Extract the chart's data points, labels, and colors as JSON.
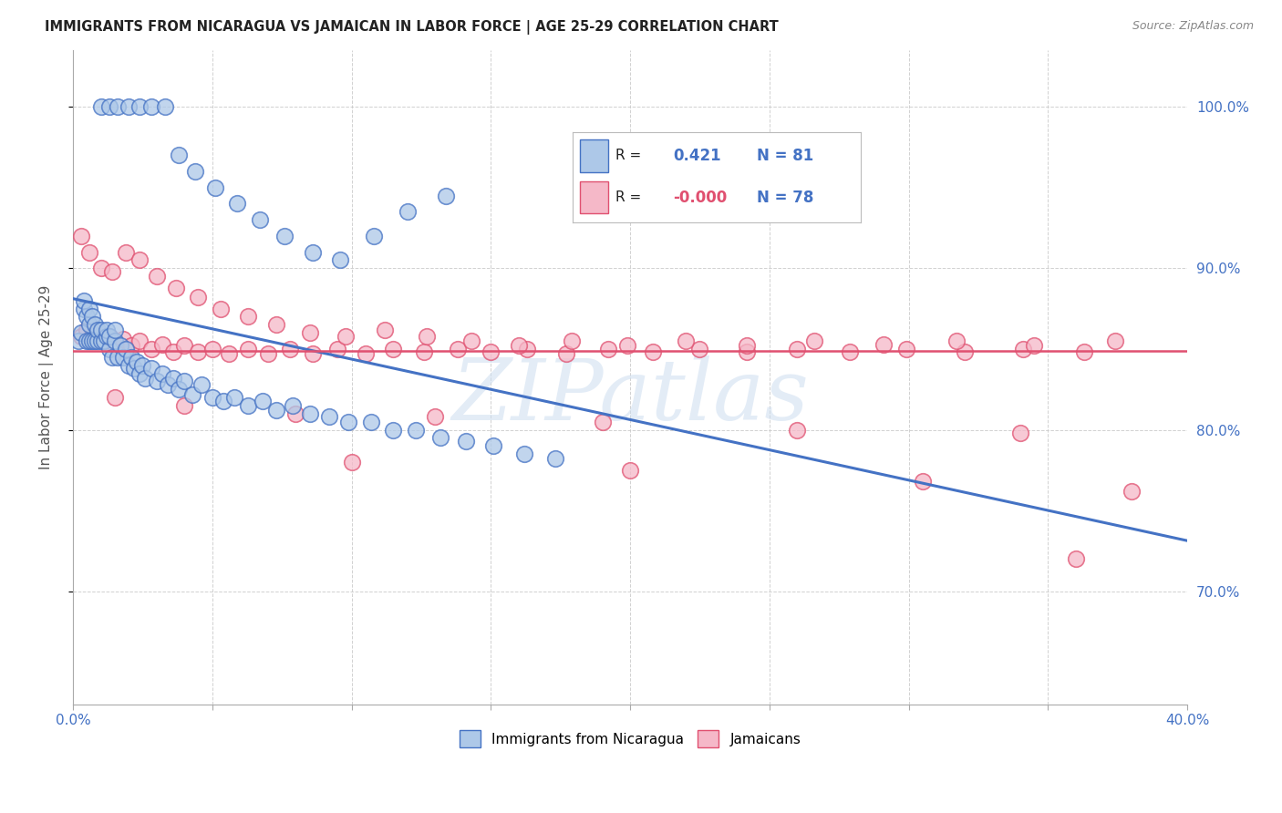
{
  "title": "IMMIGRANTS FROM NICARAGUA VS JAMAICAN IN LABOR FORCE | AGE 25-29 CORRELATION CHART",
  "source": "Source: ZipAtlas.com",
  "ylabel": "In Labor Force | Age 25-29",
  "xlim": [
    0.0,
    0.4
  ],
  "ylim": [
    0.63,
    1.035
  ],
  "xtick_positions": [
    0.0,
    0.05,
    0.1,
    0.15,
    0.2,
    0.25,
    0.3,
    0.35,
    0.4
  ],
  "xtick_labels": [
    "0.0%",
    "",
    "",
    "",
    "",
    "",
    "",
    "",
    "40.0%"
  ],
  "ytick_positions": [
    0.7,
    0.8,
    0.9,
    1.0
  ],
  "ytick_labels": [
    "70.0%",
    "80.0%",
    "90.0%",
    "100.0%"
  ],
  "legend_r_nicaragua": "0.421",
  "legend_n_nicaragua": "81",
  "legend_r_jamaican": "-0.000",
  "legend_n_jamaican": "78",
  "color_nicaragua": "#adc8e8",
  "color_jamaican": "#f5b8c8",
  "edge_color_nicaragua": "#4472c4",
  "edge_color_jamaican": "#e05070",
  "line_color_nicaragua": "#4472c4",
  "line_color_jamaican": "#e05070",
  "background_color": "#ffffff",
  "grid_color": "#cccccc",
  "title_color": "#222222",
  "right_tick_color": "#4472c4",
  "watermark_text": "ZIPatlas",
  "watermark_color": "#ccddf0",
  "nic_x": [
    0.002,
    0.003,
    0.004,
    0.004,
    0.005,
    0.005,
    0.006,
    0.006,
    0.006,
    0.007,
    0.007,
    0.008,
    0.008,
    0.009,
    0.009,
    0.01,
    0.01,
    0.011,
    0.012,
    0.012,
    0.013,
    0.013,
    0.014,
    0.015,
    0.015,
    0.016,
    0.017,
    0.018,
    0.019,
    0.02,
    0.021,
    0.022,
    0.023,
    0.024,
    0.025,
    0.026,
    0.028,
    0.03,
    0.032,
    0.034,
    0.036,
    0.038,
    0.04,
    0.043,
    0.046,
    0.05,
    0.054,
    0.058,
    0.063,
    0.068,
    0.073,
    0.079,
    0.085,
    0.092,
    0.099,
    0.107,
    0.115,
    0.123,
    0.132,
    0.141,
    0.151,
    0.162,
    0.173,
    0.01,
    0.013,
    0.016,
    0.02,
    0.024,
    0.028,
    0.033,
    0.038,
    0.044,
    0.051,
    0.059,
    0.067,
    0.076,
    0.086,
    0.096,
    0.108,
    0.12,
    0.134
  ],
  "nic_y": [
    0.855,
    0.86,
    0.875,
    0.88,
    0.855,
    0.87,
    0.855,
    0.865,
    0.875,
    0.855,
    0.87,
    0.855,
    0.865,
    0.855,
    0.862,
    0.855,
    0.862,
    0.855,
    0.858,
    0.862,
    0.85,
    0.858,
    0.845,
    0.855,
    0.862,
    0.845,
    0.852,
    0.845,
    0.85,
    0.84,
    0.845,
    0.838,
    0.842,
    0.835,
    0.84,
    0.832,
    0.838,
    0.83,
    0.835,
    0.828,
    0.832,
    0.825,
    0.83,
    0.822,
    0.828,
    0.82,
    0.818,
    0.82,
    0.815,
    0.818,
    0.812,
    0.815,
    0.81,
    0.808,
    0.805,
    0.805,
    0.8,
    0.8,
    0.795,
    0.793,
    0.79,
    0.785,
    0.782,
    1.0,
    1.0,
    1.0,
    1.0,
    1.0,
    1.0,
    1.0,
    0.97,
    0.96,
    0.95,
    0.94,
    0.93,
    0.92,
    0.91,
    0.905,
    0.92,
    0.935,
    0.945
  ],
  "jam_x": [
    0.003,
    0.005,
    0.007,
    0.009,
    0.011,
    0.013,
    0.015,
    0.018,
    0.021,
    0.024,
    0.028,
    0.032,
    0.036,
    0.04,
    0.045,
    0.05,
    0.056,
    0.063,
    0.07,
    0.078,
    0.086,
    0.095,
    0.105,
    0.115,
    0.126,
    0.138,
    0.15,
    0.163,
    0.177,
    0.192,
    0.208,
    0.225,
    0.242,
    0.26,
    0.279,
    0.299,
    0.32,
    0.341,
    0.363,
    0.003,
    0.006,
    0.01,
    0.014,
    0.019,
    0.024,
    0.03,
    0.037,
    0.045,
    0.053,
    0.063,
    0.073,
    0.085,
    0.098,
    0.112,
    0.127,
    0.143,
    0.16,
    0.179,
    0.199,
    0.22,
    0.242,
    0.266,
    0.291,
    0.317,
    0.345,
    0.374,
    0.015,
    0.04,
    0.08,
    0.13,
    0.19,
    0.26,
    0.34,
    0.1,
    0.2,
    0.305,
    0.38,
    0.36
  ],
  "jam_y": [
    0.858,
    0.862,
    0.858,
    0.86,
    0.855,
    0.858,
    0.852,
    0.856,
    0.852,
    0.855,
    0.85,
    0.853,
    0.848,
    0.852,
    0.848,
    0.85,
    0.847,
    0.85,
    0.847,
    0.85,
    0.847,
    0.85,
    0.847,
    0.85,
    0.848,
    0.85,
    0.848,
    0.85,
    0.847,
    0.85,
    0.848,
    0.85,
    0.848,
    0.85,
    0.848,
    0.85,
    0.848,
    0.85,
    0.848,
    0.92,
    0.91,
    0.9,
    0.898,
    0.91,
    0.905,
    0.895,
    0.888,
    0.882,
    0.875,
    0.87,
    0.865,
    0.86,
    0.858,
    0.862,
    0.858,
    0.855,
    0.852,
    0.855,
    0.852,
    0.855,
    0.852,
    0.855,
    0.853,
    0.855,
    0.852,
    0.855,
    0.82,
    0.815,
    0.81,
    0.808,
    0.805,
    0.8,
    0.798,
    0.78,
    0.775,
    0.768,
    0.762,
    0.72
  ]
}
